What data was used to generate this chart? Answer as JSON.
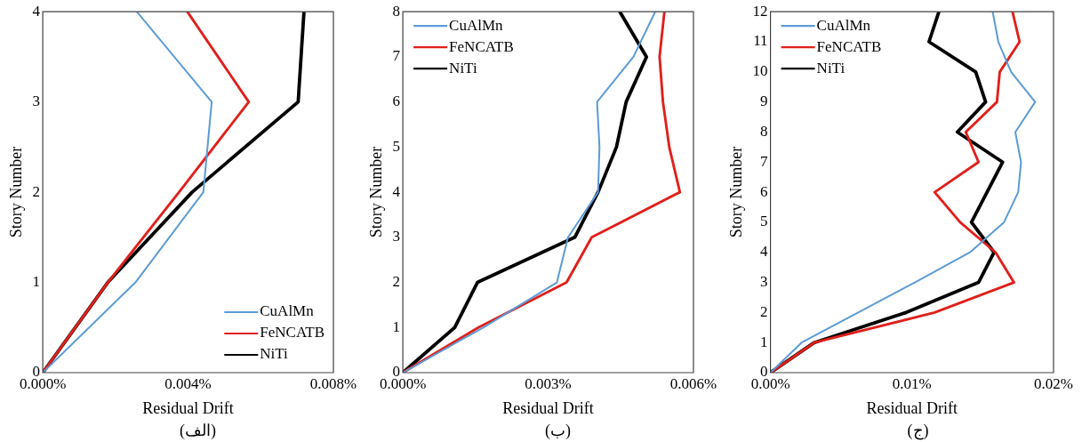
{
  "chart_data": [
    {
      "type": "line",
      "xlabel": "Residual Drift",
      "ylabel": "Story Number",
      "annotations": [
        "(الف)"
      ],
      "legend": "bottom right",
      "grid": false,
      "xlim": [
        0,
        0.008
      ],
      "xticks": [
        {
          "value": 0,
          "label": "0.000%"
        },
        {
          "value": 0.004,
          "label": "0.004%"
        },
        {
          "value": 0.008,
          "label": "0.008%"
        }
      ],
      "ylim": [
        0,
        4
      ],
      "yticks": [
        0,
        1,
        2,
        3,
        4
      ],
      "series": [
        {
          "name": "CuAlMn",
          "color": "#5b9bd5",
          "x": [
            0,
            0.00255,
            0.00442,
            0.00465,
            0.00259
          ],
          "values": [
            0,
            1,
            2,
            3,
            4
          ]
        },
        {
          "name": "FeNCATB",
          "color": "#e0201b",
          "x": [
            0,
            0.00179,
            0.00375,
            0.00567,
            0.00398
          ],
          "values": [
            0,
            1,
            2,
            3,
            4
          ]
        },
        {
          "name": "NiTi",
          "color": "#000000",
          "x": [
            0,
            0.00179,
            0.00411,
            0.00703,
            0.00719
          ],
          "values": [
            0,
            1,
            2,
            3,
            4
          ]
        }
      ]
    },
    {
      "type": "line",
      "xlabel": "Residual Drift",
      "ylabel": "Story Number",
      "annotations": [
        "(ب)"
      ],
      "legend": "top left",
      "grid": false,
      "xlim": [
        0,
        0.006
      ],
      "xticks": [
        {
          "value": 0,
          "label": "0.000%"
        },
        {
          "value": 0.003,
          "label": "0.003%"
        },
        {
          "value": 0.006,
          "label": "0.006%"
        }
      ],
      "ylim": [
        0,
        8
      ],
      "yticks": [
        0,
        1,
        2,
        3,
        4,
        5,
        6,
        7,
        8
      ],
      "series": [
        {
          "name": "CuAlMn",
          "color": "#5b9bd5",
          "x": [
            0,
            0.00166,
            0.00318,
            0.00341,
            0.00403,
            0.00406,
            0.00401,
            0.00476,
            0.00521
          ],
          "values": [
            0,
            1,
            2,
            3,
            4,
            5,
            6,
            7,
            8
          ]
        },
        {
          "name": "FeNCATB",
          "color": "#e0201b",
          "x": [
            0,
            0.00156,
            0.00338,
            0.0039,
            0.00572,
            0.0055,
            0.00537,
            0.0053,
            0.0054
          ],
          "values": [
            0,
            1,
            2,
            3,
            4,
            5,
            6,
            7,
            8
          ]
        },
        {
          "name": "NiTi",
          "color": "#000000",
          "x": [
            0,
            0.00107,
            0.00154,
            0.00355,
            0.00403,
            0.00441,
            0.00461,
            0.00503,
            0.00448
          ],
          "values": [
            0,
            1,
            2,
            3,
            4,
            5,
            6,
            7,
            8
          ]
        }
      ]
    },
    {
      "type": "line",
      "xlabel": "Residual Drift",
      "ylabel": "Story Number",
      "annotations": [
        "(ج)"
      ],
      "legend": "top left",
      "grid": false,
      "xlim": [
        0,
        0.02
      ],
      "xticks": [
        {
          "value": 0,
          "label": "0.00%"
        },
        {
          "value": 0.01,
          "label": "0.01%"
        },
        {
          "value": 0.02,
          "label": "0.02%"
        }
      ],
      "ylim": [
        0,
        12
      ],
      "yticks": [
        0,
        1,
        2,
        3,
        4,
        5,
        6,
        7,
        8,
        9,
        10,
        11,
        12
      ],
      "series": [
        {
          "name": "CuAlMn",
          "color": "#5b9bd5",
          "x": [
            0,
            0.0022,
            0.0062,
            0.0102,
            0.0141,
            0.0165,
            0.0175,
            0.0177,
            0.0173,
            0.0187,
            0.017,
            0.0161,
            0.0157
          ],
          "values": [
            0,
            1,
            2,
            3,
            4,
            5,
            6,
            7,
            8,
            9,
            10,
            11,
            12
          ]
        },
        {
          "name": "FeNCATB",
          "color": "#e0201b",
          "x": [
            0,
            0.0031,
            0.0116,
            0.0172,
            0.0159,
            0.0134,
            0.0116,
            0.0147,
            0.0138,
            0.016,
            0.0162,
            0.0176,
            0.0171
          ],
          "values": [
            0,
            1,
            2,
            3,
            4,
            5,
            6,
            7,
            8,
            9,
            10,
            11,
            12
          ]
        },
        {
          "name": "NiTi",
          "color": "#000000",
          "x": [
            0,
            0.0031,
            0.0096,
            0.0147,
            0.0158,
            0.0142,
            0.0153,
            0.0164,
            0.0132,
            0.0152,
            0.0145,
            0.0112,
            0.0119
          ],
          "values": [
            0,
            1,
            2,
            3,
            4,
            5,
            6,
            7,
            8,
            9,
            10,
            11,
            12
          ]
        }
      ]
    }
  ]
}
